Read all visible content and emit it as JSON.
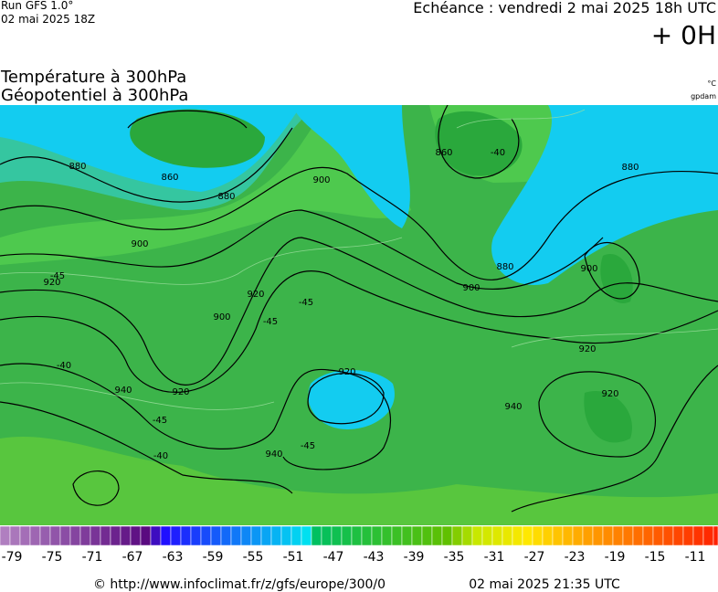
{
  "header": {
    "run": "Run GFS 1.0°",
    "run_date": "02 mai 2025 18Z",
    "echeance": "Echéance : vendredi 2 mai 2025 18h UTC",
    "lead": "+ 0H",
    "title_1": "Température à 300hPa",
    "title_2": "Géopotentiel à 300hPa",
    "unit_temp": "°C",
    "unit_geo": "gpdam"
  },
  "map": {
    "contour_labels": [
      "880",
      "860",
      "900",
      "880",
      "900",
      "920",
      "900",
      "920",
      "920",
      "940",
      "920",
      "900",
      "880",
      "860",
      "880",
      "900",
      "920",
      "920",
      "940",
      "940",
      "-45",
      "-40",
      "-45",
      "-40",
      "-45",
      "-40",
      "-45",
      "-45"
    ]
  },
  "legend": {
    "labels": [
      "-79",
      "-75",
      "-71",
      "-67",
      "-63",
      "-59",
      "-55",
      "-51",
      "-47",
      "-43",
      "-39",
      "-35",
      "-31",
      "-27",
      "-23",
      "-19",
      "-15",
      "-11"
    ]
  },
  "footer": {
    "url": "© http://www.infoclimat.fr/z/gfs/europe/300/0",
    "timestamp": "02 mai 2025 21:35 UTC"
  }
}
